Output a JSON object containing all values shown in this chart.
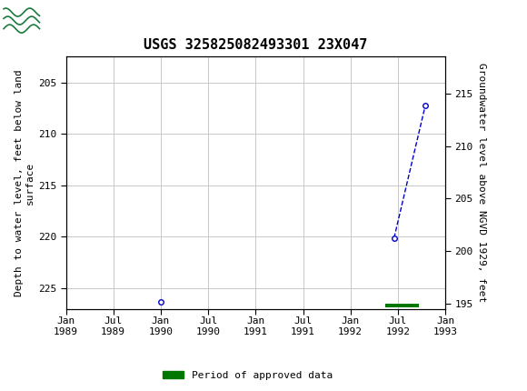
{
  "title": "USGS 325825082493301 23X047",
  "ylabel_left": "Depth to water level, feet below land\nsurface",
  "ylabel_right": "Groundwater level above NGVD 1929, feet",
  "ylim_left": [
    227.0,
    202.5
  ],
  "ylim_right": [
    194.5,
    218.5
  ],
  "yticks_left": [
    205,
    210,
    215,
    220,
    225
  ],
  "yticks_right": [
    195,
    200,
    205,
    210,
    215
  ],
  "isolated_point_date": 1990.0,
  "isolated_point_value": 226.3,
  "connected_dates": [
    1992.46,
    1992.79
  ],
  "connected_values": [
    220.1,
    207.2
  ],
  "line_color": "#0000cc",
  "line_style": "--",
  "marker_style": "o",
  "marker_facecolor": "white",
  "marker_edgecolor": "#0000cc",
  "marker_size": 4,
  "approved_bar_start": 1992.37,
  "approved_bar_end": 1992.72,
  "approved_bar_y": 226.7,
  "approved_bar_color": "#007700",
  "approved_bar_height": 0.35,
  "grid_color": "#c8c8c8",
  "background_color": "#ffffff",
  "header_bg_color": "#1a7a3c",
  "title_fontsize": 11,
  "axis_fontsize": 8,
  "tick_fontsize": 8,
  "x_start_decimal": 1989.0,
  "x_end_decimal": 1993.0,
  "xtick_labels": [
    "Jan\n1989",
    "Jul\n1989",
    "Jan\n1990",
    "Jul\n1990",
    "Jan\n1991",
    "Jul\n1991",
    "Jan\n1992",
    "Jul\n1992",
    "Jan\n1993"
  ],
  "xtick_positions": [
    1989.0,
    1989.5,
    1990.0,
    1990.5,
    1991.0,
    1991.5,
    1992.0,
    1992.5,
    1993.0
  ],
  "legend_label": "Period of approved data",
  "legend_color": "#007700",
  "font_family": "monospace"
}
